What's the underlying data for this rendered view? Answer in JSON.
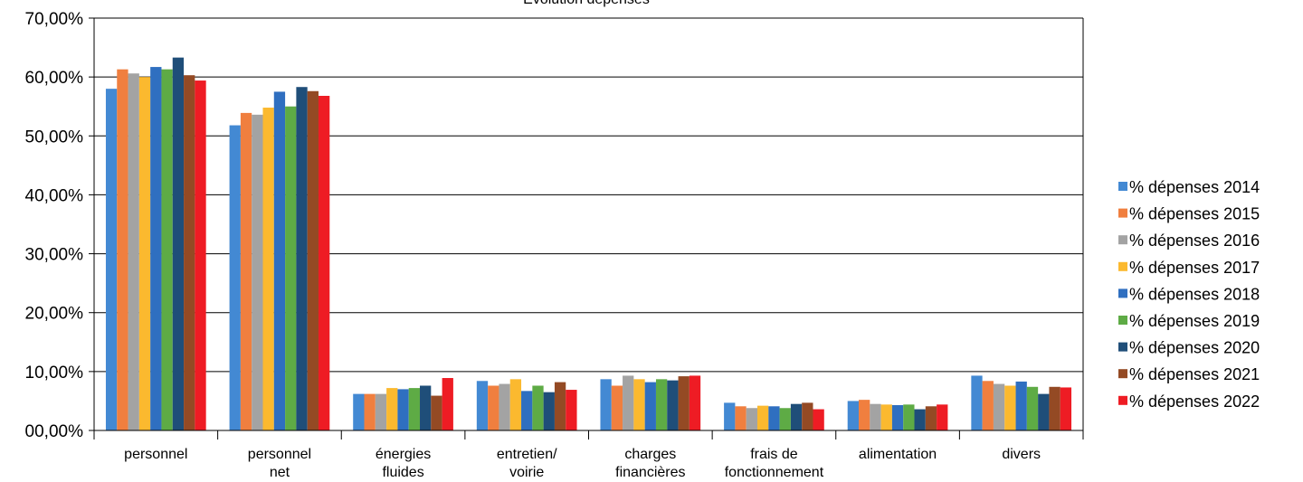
{
  "chart_data": {
    "type": "bar",
    "title": "Evolution dépenses",
    "xlabel": "",
    "ylabel": "",
    "ylim": [
      0,
      70
    ],
    "y_ticks": [
      "00,00%",
      "10,00%",
      "20,00%",
      "30,00%",
      "40,00%",
      "50,00%",
      "60,00%",
      "70,00%"
    ],
    "grid": true,
    "legend_position": "right",
    "categories": [
      [
        "personnel"
      ],
      [
        "personnel",
        "net"
      ],
      [
        "énergies",
        "fluides"
      ],
      [
        "entretien/",
        "voirie"
      ],
      [
        "charges",
        "financières"
      ],
      [
        "frais de",
        "fonctionnement"
      ],
      [
        "alimentation"
      ],
      [
        "divers"
      ]
    ],
    "series": [
      {
        "name": "% dépenses 2014",
        "color": "#4389d3",
        "values": [
          58.0,
          51.8,
          6.2,
          8.4,
          8.7,
          4.7,
          5.0,
          9.3
        ]
      },
      {
        "name": "% dépenses 2015",
        "color": "#f07f3f",
        "values": [
          61.3,
          53.9,
          6.2,
          7.6,
          7.6,
          4.1,
          5.2,
          8.4
        ]
      },
      {
        "name": "% dépenses 2016",
        "color": "#a3a3a3",
        "values": [
          60.6,
          53.6,
          6.2,
          7.9,
          9.3,
          3.8,
          4.5,
          7.9
        ]
      },
      {
        "name": "% dépenses 2017",
        "color": "#fbb92f",
        "values": [
          60.0,
          54.8,
          7.2,
          8.7,
          8.7,
          4.2,
          4.4,
          7.6
        ]
      },
      {
        "name": "% dépenses 2018",
        "color": "#2f6fc0",
        "values": [
          61.7,
          57.5,
          7.0,
          6.7,
          8.2,
          4.1,
          4.3,
          8.3
        ]
      },
      {
        "name": "% dépenses 2019",
        "color": "#5eab45",
        "values": [
          61.3,
          55.0,
          7.2,
          7.6,
          8.7,
          3.8,
          4.4,
          7.4
        ]
      },
      {
        "name": "% dépenses 2020",
        "color": "#1f4e79",
        "values": [
          63.3,
          58.3,
          7.6,
          6.5,
          8.5,
          4.5,
          3.6,
          6.2
        ]
      },
      {
        "name": "% dépenses 2021",
        "color": "#944a24",
        "values": [
          60.3,
          57.6,
          5.9,
          8.2,
          9.2,
          4.7,
          4.1,
          7.4
        ]
      },
      {
        "name": "% dépenses 2022",
        "color": "#ee1c24",
        "values": [
          59.4,
          56.8,
          8.9,
          6.9,
          9.3,
          3.6,
          4.4,
          7.3
        ]
      }
    ]
  }
}
